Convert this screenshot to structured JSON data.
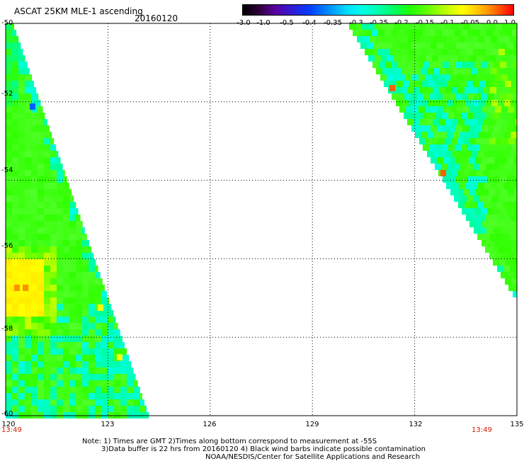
{
  "header": {
    "title": "ASCAT 25KM MLE-1 ascending",
    "date": "20160120"
  },
  "colorbar": {
    "labels": [
      "-3.0",
      "-1.0",
      "-0.5",
      "-0.4",
      "-0.35",
      "-0.3",
      "-0.25",
      "-0.2",
      "-0.15",
      "-0.1",
      "-0.05",
      "0.0",
      "1.0"
    ]
  },
  "axes": {
    "x_ticks": [
      "120",
      "123",
      "126",
      "129",
      "132",
      "135"
    ],
    "y_ticks": [
      "-50",
      "-52",
      "-54",
      "-56",
      "-58",
      "-60"
    ],
    "grid": true
  },
  "times": {
    "left": "13:49",
    "right": "13:49"
  },
  "notes": {
    "line1": "Note: 1) Times are GMT 2)Times along bottom correspond to measurement at -55S",
    "line2": "3)Data buffer is 22 hrs from 20160120 4) Black wind barbs indicate possible contamination",
    "line3": "NOAA/NESDIS/Center for Satellite Applications and Research"
  },
  "colors": {
    "frame": "#000000",
    "time_label": "#d02000",
    "green": "#30ff00",
    "cyan": "#00ffe0",
    "yellow": "#ffff00",
    "orange": "#ff6000",
    "blue": "#0060ff"
  }
}
